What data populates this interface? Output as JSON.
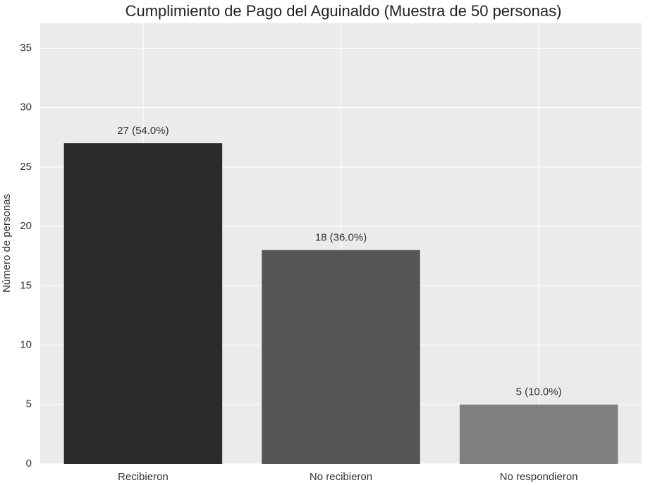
{
  "chart_data": {
    "type": "bar",
    "title": "Cumplimiento de Pago del Aguinaldo (Muestra de 50 personas)",
    "y_label": "Número de personas",
    "categories": [
      "Recibieron",
      "No recibieron",
      "No respondieron"
    ],
    "values": [
      27,
      18,
      5
    ],
    "value_labels": [
      "27 (54.0%)",
      "18 (36.0%)",
      "5 (10.0%)"
    ],
    "colors": [
      "#2b2b2b",
      "#555555",
      "#808080"
    ],
    "ylim": [
      0,
      37.1
    ],
    "yticks": [
      0,
      5,
      10,
      15,
      20,
      25,
      30,
      35
    ],
    "grid": true
  }
}
